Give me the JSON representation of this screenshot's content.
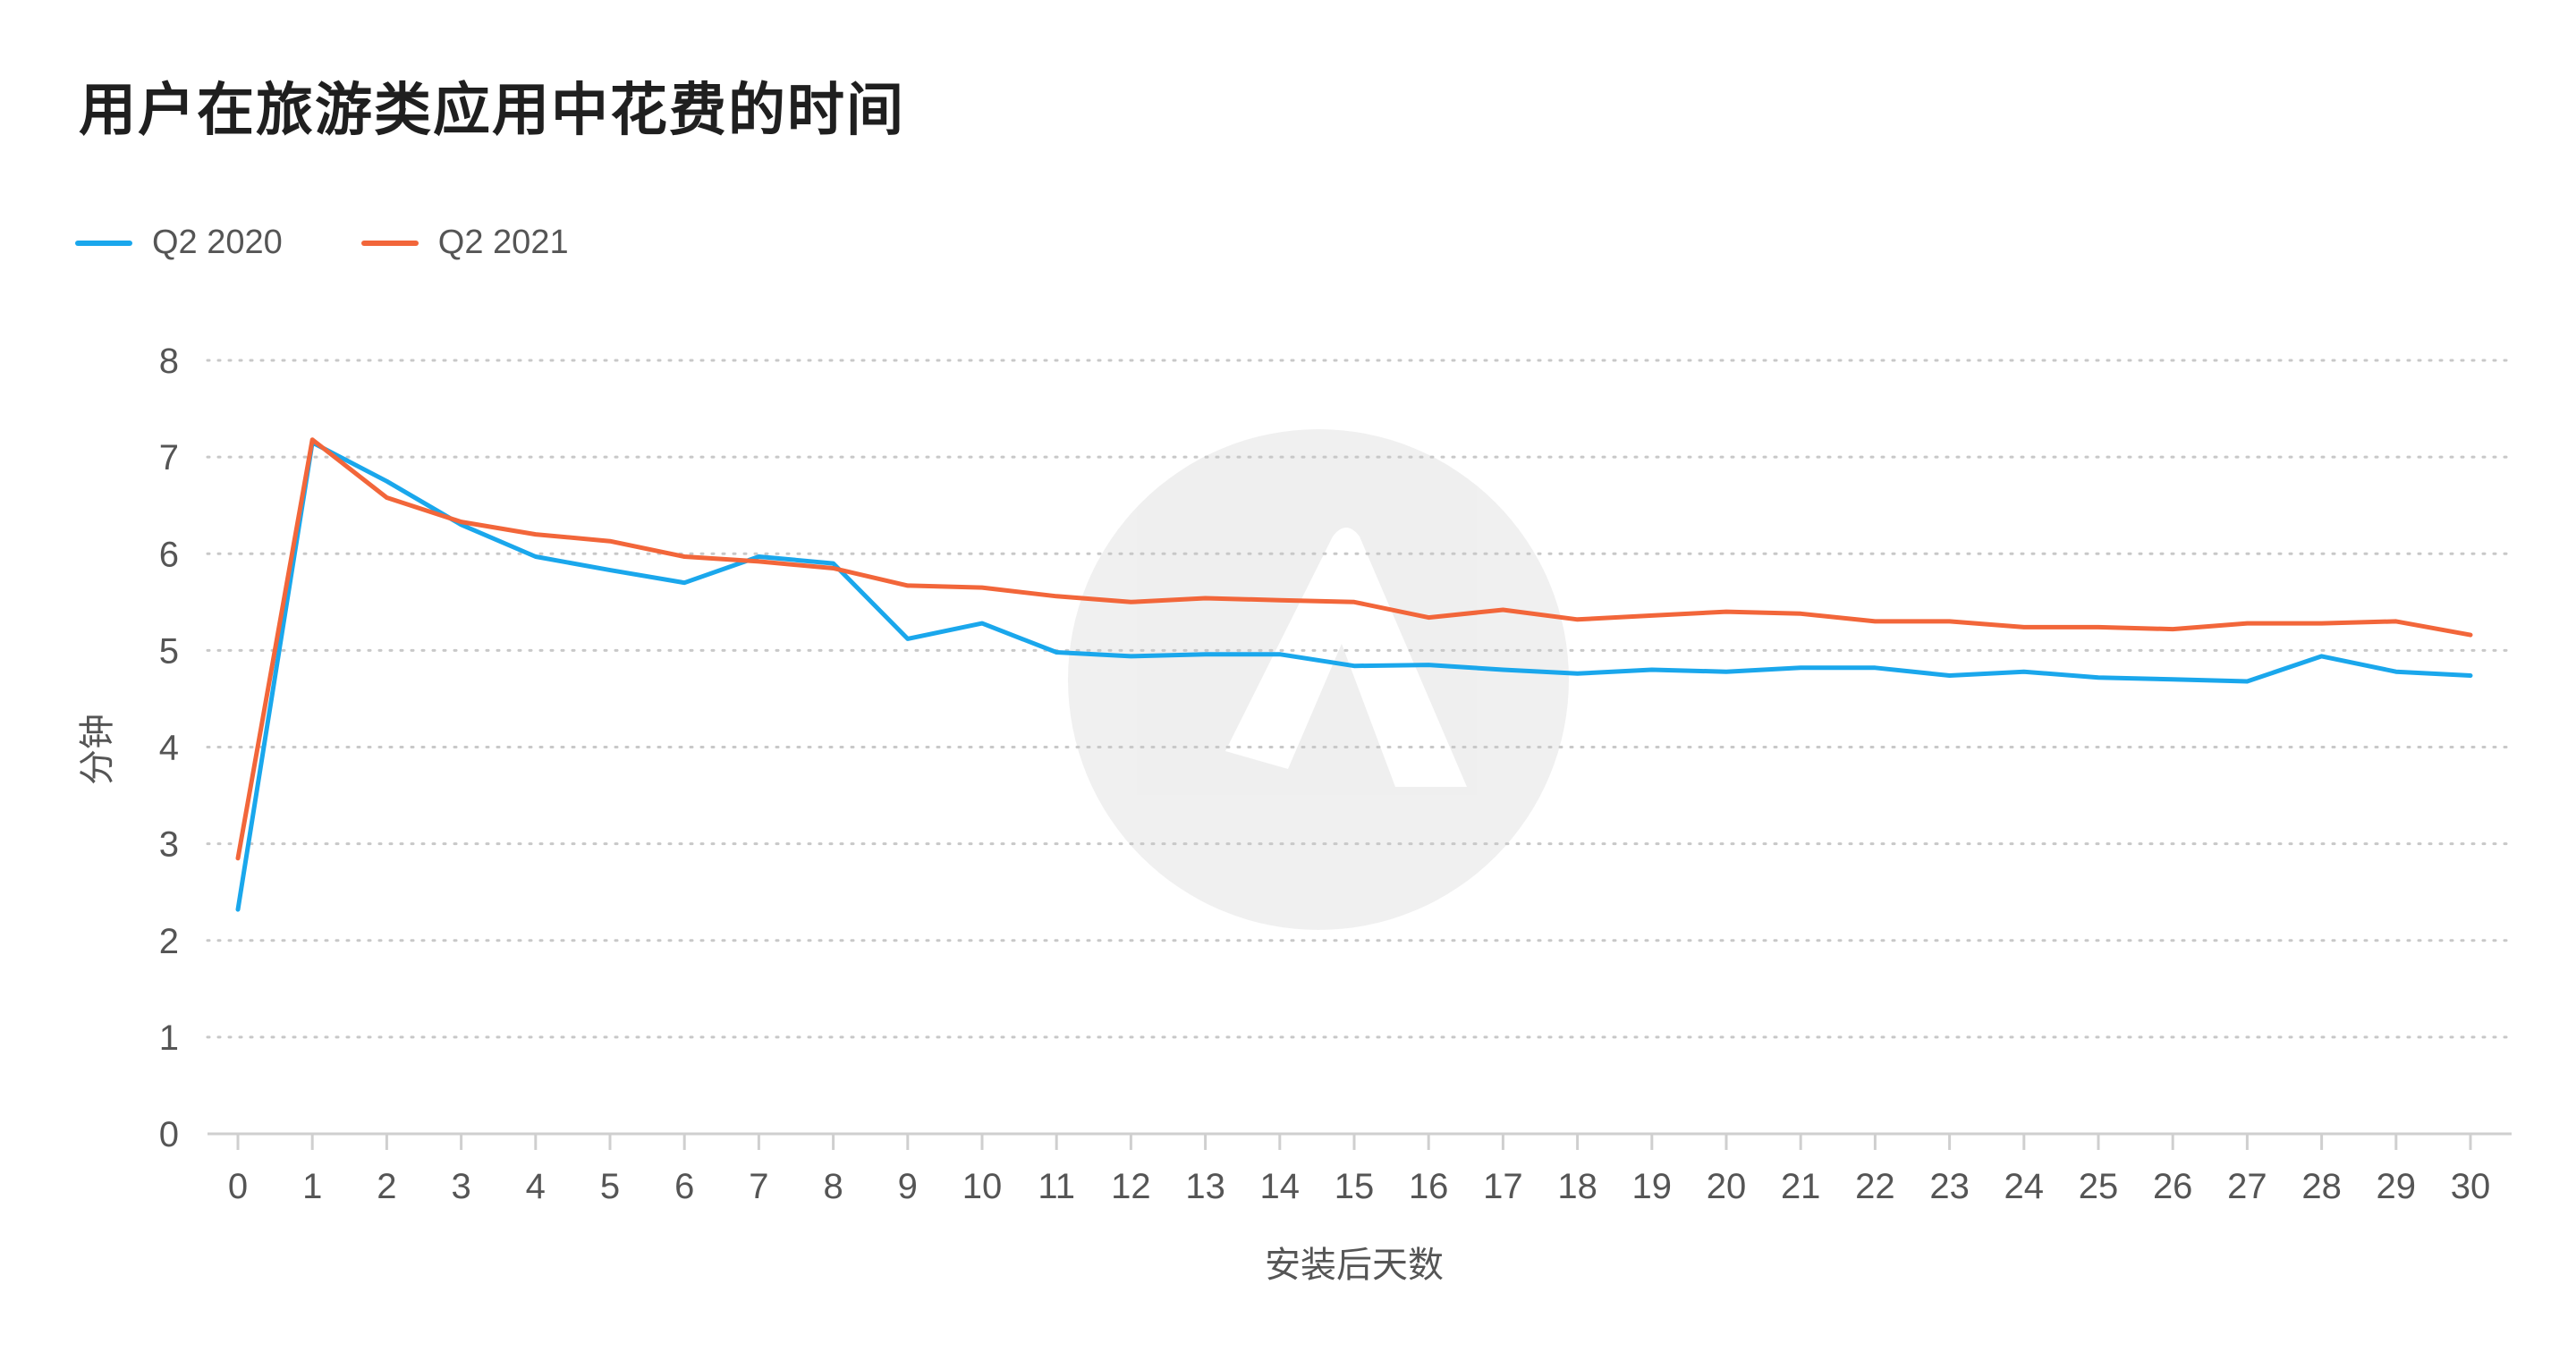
{
  "chart_data": {
    "type": "line",
    "title": "用户在旅游类应用中花费的时间",
    "xlabel": "安装后天数",
    "ylabel": "分钟",
    "x": [
      0,
      1,
      2,
      3,
      4,
      5,
      6,
      7,
      8,
      9,
      10,
      11,
      12,
      13,
      14,
      15,
      16,
      17,
      18,
      19,
      20,
      21,
      22,
      23,
      24,
      25,
      26,
      27,
      28,
      29,
      30
    ],
    "ylim": [
      0,
      8
    ],
    "yticks": [
      0,
      1,
      2,
      3,
      4,
      5,
      6,
      7,
      8
    ],
    "grid": "horizontal-dotted",
    "legend_position": "top-left",
    "series": [
      {
        "name": "Q2 2020",
        "color": "#1aa7ec",
        "values": [
          2.32,
          7.15,
          6.75,
          6.3,
          5.97,
          5.83,
          5.7,
          5.97,
          5.9,
          5.12,
          5.28,
          4.98,
          4.94,
          4.96,
          4.96,
          4.84,
          4.85,
          4.8,
          4.76,
          4.8,
          4.78,
          4.82,
          4.82,
          4.74,
          4.78,
          4.72,
          4.7,
          4.68,
          4.94,
          4.78,
          4.74
        ]
      },
      {
        "name": "Q2 2021",
        "color": "#f2663a",
        "values": [
          2.85,
          7.18,
          6.58,
          6.33,
          6.2,
          6.13,
          5.97,
          5.92,
          5.85,
          5.67,
          5.65,
          5.56,
          5.5,
          5.54,
          5.52,
          5.5,
          5.34,
          5.42,
          5.32,
          5.36,
          5.4,
          5.38,
          5.3,
          5.3,
          5.24,
          5.24,
          5.22,
          5.28,
          5.28,
          5.3,
          5.16
        ]
      }
    ]
  }
}
